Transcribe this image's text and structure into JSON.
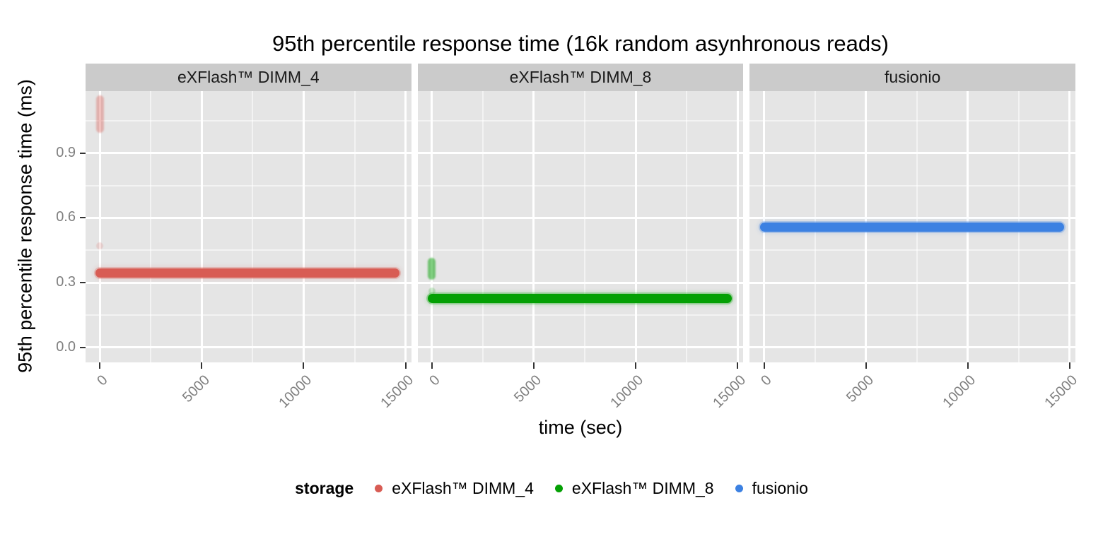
{
  "chart_data": {
    "type": "scatter",
    "title": "95th percentile response time (16k random asynhronous reads)",
    "xlabel": "time (sec)",
    "ylabel": "95th percentile response time (ms)",
    "legend_title": "storage",
    "legend_position": "bottom",
    "grid": "major-and-minor-white-on-gray",
    "x_range": [
      -700,
      15280
    ],
    "y_range": [
      -0.069,
      1.187
    ],
    "x_ticks": [
      0,
      5000,
      10000,
      15000
    ],
    "x_tick_labels": [
      "0",
      "5000",
      "10000",
      "15000"
    ],
    "x_minor": [
      2500,
      7500,
      12500
    ],
    "y_ticks": [
      0.0,
      0.3,
      0.6,
      0.9
    ],
    "y_tick_labels": [
      "0.0",
      "0.3",
      "0.6",
      "0.9"
    ],
    "y_minor": [
      0.15,
      0.45,
      0.75,
      1.05
    ],
    "facets": [
      {
        "label": "eXFlash™ DIMM_4",
        "series": "eXFlash™ DIMM_4",
        "color": "#d85c54",
        "band": {
          "x_start": 0,
          "x_end": 14500,
          "y": 0.345
        },
        "outliers": [
          {
            "type": "cluster",
            "x": 0,
            "y_top": 1.15,
            "y_bottom": 1.01,
            "opacity": 0.38
          },
          {
            "type": "dot",
            "x": 0,
            "y": 0.47,
            "opacity": 0.18
          }
        ]
      },
      {
        "label": "eXFlash™ DIMM_8",
        "series": "eXFlash™ DIMM_8",
        "color": "#04a004",
        "band": {
          "x_start": 0,
          "x_end": 14500,
          "y": 0.228
        },
        "outliers": [
          {
            "type": "cluster",
            "x": 0,
            "y_top": 0.4,
            "y_bottom": 0.33,
            "opacity": 0.5
          },
          {
            "type": "dot",
            "x": 0,
            "y": 0.262,
            "opacity": 0.18
          }
        ]
      },
      {
        "label": "fusionio",
        "series": "fusionio",
        "color": "#3c81e2",
        "band": {
          "x_start": 0,
          "x_end": 14500,
          "y": 0.557
        },
        "outliers": []
      }
    ],
    "legend": [
      {
        "label": "eXFlash™ DIMM_4",
        "color": "#d85c54"
      },
      {
        "label": "eXFlash™ DIMM_8",
        "color": "#04a004"
      },
      {
        "label": "fusionio",
        "color": "#3c81e2"
      }
    ],
    "colors": {
      "panel_background": "#e5e5e5",
      "strip_background": "#cbcbcb",
      "gridline": "#ffffff",
      "tick_mark": "#333333",
      "tick_label": "#7f7f7f",
      "text": "#000000"
    }
  }
}
